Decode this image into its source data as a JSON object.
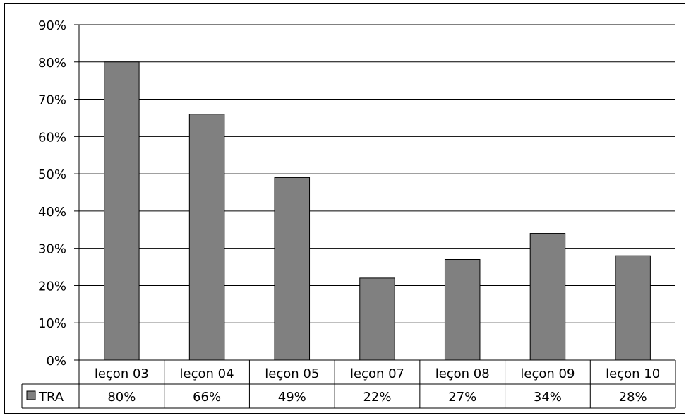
{
  "chart_data": {
    "type": "bar",
    "title": "",
    "xlabel": "",
    "ylabel": "",
    "categories": [
      "leçon 03",
      "leçon 04",
      "leçon 05",
      "leçon 07",
      "leçon 08",
      "leçon 09",
      "leçon 10"
    ],
    "series": [
      {
        "name": "TRA",
        "values": [
          80,
          66,
          49,
          22,
          27,
          34,
          28
        ],
        "labels": [
          "80%",
          "66%",
          "49%",
          "22%",
          "27%",
          "34%",
          "28%"
        ],
        "color": "#808080"
      }
    ],
    "ylim": [
      0,
      90
    ],
    "yticks": [
      "0%",
      "10%",
      "20%",
      "30%",
      "40%",
      "50%",
      "60%",
      "70%",
      "80%",
      "90%"
    ],
    "grid": true,
    "legend": "data-table"
  }
}
